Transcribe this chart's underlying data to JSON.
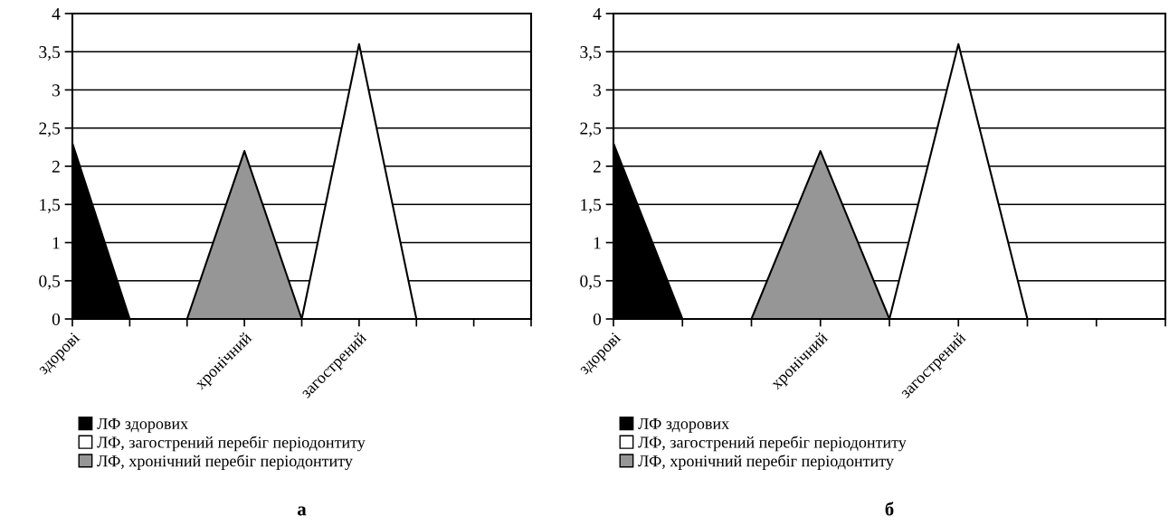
{
  "chart_data": [
    {
      "type": "area",
      "categories": [
        "здорові",
        null,
        null,
        "хронічний",
        null,
        "загострений",
        null,
        null,
        null
      ],
      "series": [
        {
          "name": "ЛФ здорових",
          "color": "#000000",
          "values": [
            2.3,
            0,
            0,
            0,
            0,
            0,
            0,
            0,
            0
          ]
        },
        {
          "name": "ЛФ, загострений перебіг періодонтиту",
          "color": "#ffffff",
          "values": [
            0,
            0,
            0,
            0,
            0,
            3.6,
            0,
            0,
            0
          ]
        },
        {
          "name": "ЛФ, хронічний перебіг періодонтиту",
          "color": "#969696",
          "values": [
            0,
            0,
            0,
            2.2,
            0,
            0,
            0,
            0,
            0
          ]
        }
      ],
      "ylim": [
        0,
        4
      ],
      "yticks": [
        0,
        {
          "value": 0.5,
          "label": "0,5"
        },
        1,
        {
          "value": 1.5,
          "label": "1,5"
        },
        2,
        {
          "value": 2.5,
          "label": "2,5"
        },
        3,
        {
          "value": 3.5,
          "label": "3,5"
        },
        4
      ],
      "grid": "y",
      "legend": "bottom",
      "annotations": [
        "а"
      ]
    },
    {
      "type": "area",
      "categories": [
        "здорові",
        null,
        null,
        "хронічний",
        null,
        "загострений",
        null,
        null,
        null
      ],
      "series": [
        {
          "name": "ЛФ здорових",
          "color": "#000000",
          "values": [
            2.3,
            0,
            0,
            0,
            0,
            0,
            0,
            0,
            0
          ]
        },
        {
          "name": "ЛФ, загострений перебіг періодонтиту",
          "color": "#ffffff",
          "values": [
            0,
            0,
            0,
            0,
            0,
            3.6,
            0,
            0,
            0
          ]
        },
        {
          "name": "ЛФ, хронічний перебіг періодонтиту",
          "color": "#969696",
          "values": [
            0,
            0,
            0,
            2.2,
            0,
            0,
            0,
            0,
            0
          ]
        }
      ],
      "ylim": [
        0,
        4
      ],
      "yticks": [
        0,
        {
          "value": 0.5,
          "label": "0,5"
        },
        1,
        {
          "value": 1.5,
          "label": "1,5"
        },
        2,
        {
          "value": 2.5,
          "label": "2,5"
        },
        3,
        {
          "value": 3.5,
          "label": "3,5"
        },
        4
      ],
      "grid": "y",
      "legend": "bottom",
      "annotations": [
        "б"
      ]
    }
  ]
}
